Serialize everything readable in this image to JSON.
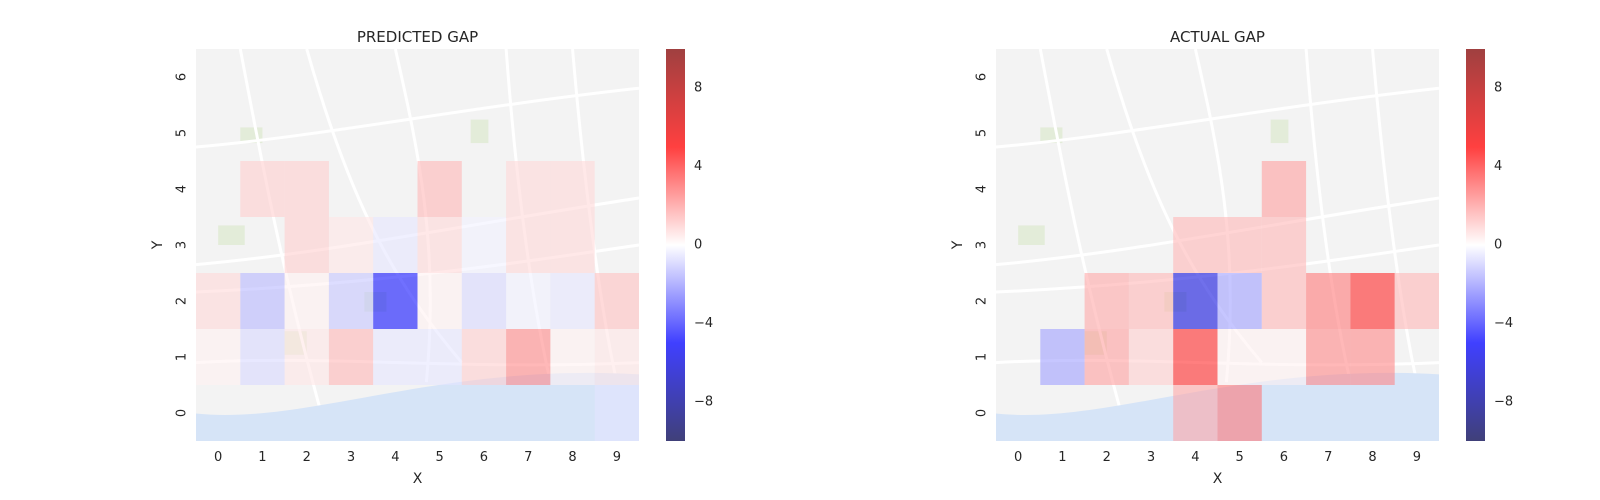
{
  "chart_data": [
    {
      "type": "heatmap",
      "title": "PREDICTED GAP",
      "xlabel": "X",
      "ylabel": "Y",
      "x_ticks": [
        "0",
        "1",
        "2",
        "3",
        "4",
        "5",
        "6",
        "7",
        "8",
        "9"
      ],
      "y_ticks": [
        "0",
        "1",
        "2",
        "3",
        "4",
        "5",
        "6"
      ],
      "colorbar": {
        "ticks": [
          "8",
          "4",
          "0",
          "−4",
          "−8"
        ],
        "tick_values": [
          8,
          4,
          0,
          -4,
          -8
        ],
        "range": [
          -10,
          10
        ],
        "colormap": "seismic",
        "alpha": 0.75
      },
      "background": "map",
      "rows_top_to_bottom": [
        [
          null,
          null,
          null,
          null,
          null,
          null,
          null,
          null,
          null,
          null
        ],
        [
          null,
          null,
          null,
          null,
          null,
          null,
          null,
          null,
          null,
          null
        ],
        [
          null,
          1.0,
          1.0,
          null,
          null,
          1.5,
          null,
          0.8,
          0.8,
          null
        ],
        [
          null,
          null,
          1.0,
          0.5,
          -0.5,
          0.8,
          -0.3,
          0.8,
          0.8,
          null
        ],
        [
          0.8,
          -1.5,
          0.3,
          -1.2,
          -5.0,
          0.3,
          -0.8,
          -0.3,
          -0.5,
          1.3
        ],
        [
          0.3,
          -0.8,
          0.5,
          1.5,
          -0.5,
          -0.5,
          1.0,
          2.5,
          0.3,
          0.5
        ],
        [
          null,
          null,
          null,
          null,
          null,
          null,
          null,
          null,
          null,
          -0.5
        ]
      ]
    },
    {
      "type": "heatmap",
      "title": "ACTUAL GAP",
      "xlabel": "X",
      "ylabel": "Y",
      "x_ticks": [
        "0",
        "1",
        "2",
        "3",
        "4",
        "5",
        "6",
        "7",
        "8",
        "9"
      ],
      "y_ticks": [
        "0",
        "1",
        "2",
        "3",
        "4",
        "5",
        "6"
      ],
      "colorbar": {
        "ticks": [
          "8",
          "4",
          "0",
          "−4",
          "−8"
        ],
        "tick_values": [
          8,
          4,
          0,
          -4,
          -8
        ],
        "range": [
          -10,
          10
        ],
        "colormap": "seismic",
        "alpha": 0.75
      },
      "background": "map",
      "rows_top_to_bottom": [
        [
          null,
          null,
          null,
          null,
          null,
          null,
          null,
          null,
          null,
          null
        ],
        [
          null,
          null,
          null,
          null,
          null,
          null,
          null,
          null,
          null,
          null
        ],
        [
          null,
          null,
          null,
          null,
          null,
          null,
          2.0,
          null,
          null,
          null
        ],
        [
          null,
          null,
          null,
          null,
          1.5,
          1.5,
          1.5,
          null,
          null,
          null
        ],
        [
          null,
          null,
          1.8,
          1.5,
          -6.0,
          -2.0,
          1.5,
          2.8,
          4.5,
          1.5
        ],
        [
          null,
          -2.0,
          2.0,
          1.0,
          4.5,
          0.3,
          0.3,
          2.5,
          2.5,
          null
        ],
        [
          null,
          null,
          null,
          null,
          1.8,
          2.8,
          null,
          null,
          null,
          null
        ]
      ]
    }
  ]
}
